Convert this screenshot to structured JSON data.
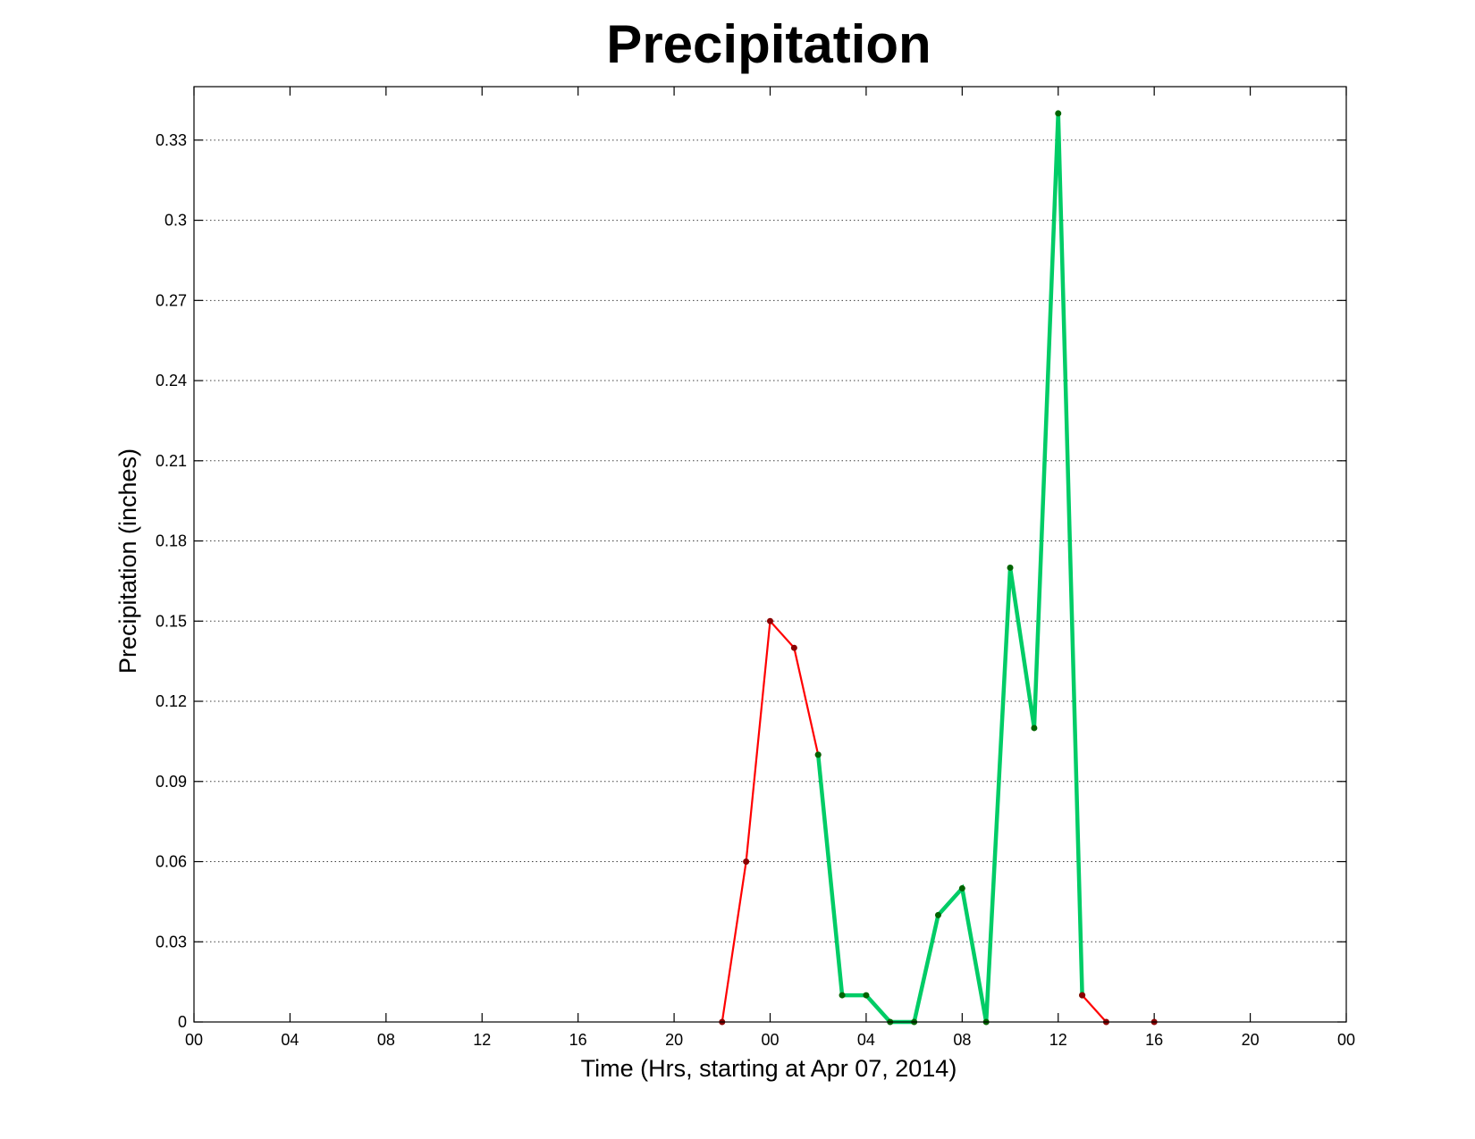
{
  "chart_data": {
    "type": "line",
    "title": "Precipitation",
    "xlabel": "Time (Hrs, starting at Apr 07, 2014)",
    "ylabel": "Precipitation (inches)",
    "x_unit": "hour",
    "xlim": [
      0,
      48
    ],
    "ylim": [
      0,
      0.35
    ],
    "x_ticks": [
      0,
      4,
      8,
      12,
      16,
      20,
      24,
      28,
      32,
      36,
      40,
      44,
      48
    ],
    "x_tick_labels": [
      "00",
      "04",
      "08",
      "12",
      "16",
      "20",
      "00",
      "04",
      "08",
      "12",
      "16",
      "20",
      "00"
    ],
    "y_ticks": [
      0,
      0.03,
      0.06,
      0.09,
      0.12,
      0.15,
      0.18,
      0.21,
      0.24,
      0.27,
      0.3,
      0.33
    ],
    "y_tick_labels": [
      "0",
      "0.03",
      "0.06",
      "0.09",
      "0.12",
      "0.15",
      "0.18",
      "0.21",
      "0.24",
      "0.27",
      "0.3",
      "0.33"
    ],
    "grid": "horizontal dotted",
    "series": [
      {
        "color": "#ff0000",
        "marker_color": "#8b0000",
        "x": [
          22,
          23,
          24,
          25,
          26
        ],
        "y": [
          0,
          0.06,
          0.15,
          0.14,
          0.1
        ]
      },
      {
        "color": "#00cc66",
        "marker_color": "#006400",
        "x": [
          26,
          27,
          28,
          29,
          30,
          31,
          32,
          33,
          34,
          35,
          36,
          37
        ],
        "y": [
          0.1,
          0.01,
          0.01,
          0,
          0,
          0.04,
          0.05,
          0,
          0.17,
          0.11,
          0.34,
          0.01
        ]
      },
      {
        "color": "#ff0000",
        "marker_color": "#8b0000",
        "x": [
          37,
          38
        ],
        "y": [
          0.01,
          0
        ]
      },
      {
        "color": "#ff0000",
        "marker_color": "#8b0000",
        "x": [
          40
        ],
        "y": [
          0
        ]
      }
    ]
  }
}
